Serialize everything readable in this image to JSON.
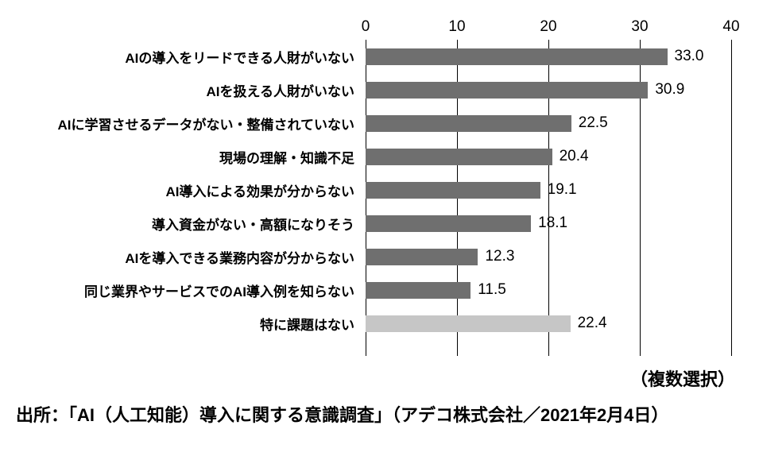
{
  "chart_data": {
    "type": "bar",
    "orientation": "horizontal",
    "title": "",
    "xlabel": "",
    "ylabel": "",
    "xlim": [
      0,
      40
    ],
    "ticks": [
      0,
      10,
      20,
      30,
      40
    ],
    "axis_position": "top",
    "grid": true,
    "categories": [
      "AIの導入をリードできる人財がいない",
      "AIを扱える人財がいない",
      "AIに学習させるデータがない・整備されていない",
      "現場の理解・知識不足",
      "AI導入による効果が分からない",
      "導入資金がない・高額になりそう",
      "AIを導入できる業務内容が分からない",
      "同じ業界やサービスでのAI導入例を知らない",
      "特に課題はない"
    ],
    "values": [
      33.0,
      30.9,
      22.5,
      20.4,
      19.1,
      18.1,
      12.3,
      11.5,
      22.4
    ],
    "value_labels": [
      "33.0",
      "30.9",
      "22.5",
      "20.4",
      "19.1",
      "18.1",
      "12.3",
      "11.5",
      "22.4"
    ],
    "bar_colors": [
      "#6f6f6f",
      "#6f6f6f",
      "#6f6f6f",
      "#6f6f6f",
      "#6f6f6f",
      "#6f6f6f",
      "#6f6f6f",
      "#6f6f6f",
      "#c6c6c6"
    ],
    "gridline_color": "#000000",
    "note": "（複数選択）",
    "source": "出所：「AI（人工知能）導入に関する意識調査」（アデコ株式会社／2021年2月4日）"
  }
}
